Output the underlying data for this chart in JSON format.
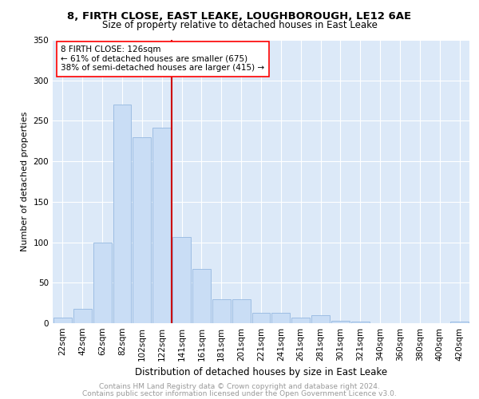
{
  "title1": "8, FIRTH CLOSE, EAST LEAKE, LOUGHBOROUGH, LE12 6AE",
  "title2": "Size of property relative to detached houses in East Leake",
  "xlabel": "Distribution of detached houses by size in East Leake",
  "ylabel": "Number of detached properties",
  "bar_labels": [
    "22sqm",
    "42sqm",
    "62sqm",
    "82sqm",
    "102sqm",
    "122sqm",
    "141sqm",
    "161sqm",
    "181sqm",
    "201sqm",
    "221sqm",
    "241sqm",
    "261sqm",
    "281sqm",
    "301sqm",
    "321sqm",
    "340sqm",
    "360sqm",
    "380sqm",
    "400sqm",
    "420sqm"
  ],
  "bar_values": [
    7,
    18,
    100,
    270,
    230,
    242,
    106,
    67,
    30,
    30,
    13,
    13,
    7,
    10,
    3,
    2,
    0,
    0,
    0,
    0,
    2
  ],
  "bar_color": "#c9ddf5",
  "bar_edgecolor": "#95b8e0",
  "annotation_line1": "8 FIRTH CLOSE: 126sqm",
  "annotation_line2": "← 61% of detached houses are smaller (675)",
  "annotation_line3": "38% of semi-detached houses are larger (415) →",
  "vline_color": "#cc0000",
  "vline_x": 5.5,
  "ylim": [
    0,
    350
  ],
  "yticks": [
    0,
    50,
    100,
    150,
    200,
    250,
    300,
    350
  ],
  "footer1": "Contains HM Land Registry data © Crown copyright and database right 2024.",
  "footer2": "Contains public sector information licensed under the Open Government Licence v3.0.",
  "plot_bg_color": "#dce9f8",
  "grid_color": "#ffffff",
  "title1_fontsize": 9.5,
  "title2_fontsize": 8.5,
  "ylabel_fontsize": 8,
  "xlabel_fontsize": 8.5,
  "tick_fontsize": 7.5,
  "annot_fontsize": 7.5,
  "footer_fontsize": 6.5,
  "footer_color": "#999999"
}
